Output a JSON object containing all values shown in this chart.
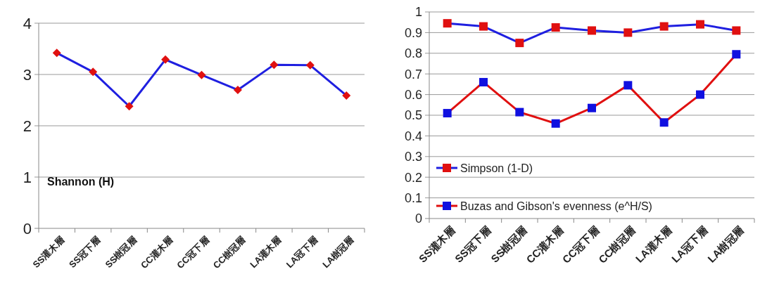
{
  "chart_data": [
    {
      "type": "line",
      "categories": [
        "SS灌木層",
        "SS冠下層",
        "SS樹冠層",
        "CC灌木層",
        "CC冠下層",
        "CC樹冠層",
        "LA灌木層",
        "LA冠下層",
        "LA樹冠層"
      ],
      "series": [
        {
          "color": "#1f1fe0",
          "colors": [
            "#e01010",
            "#e01010",
            "#e01010",
            "#e01010",
            "#e01010",
            "#e01010",
            "#e01010",
            "#e01010",
            "#e01010"
          ],
          "values": [
            3.42,
            3.05,
            2.38,
            3.29,
            2.99,
            2.7,
            3.19,
            3.18,
            2.59
          ]
        }
      ],
      "ylim": [
        0,
        4
      ],
      "yticks": [
        0,
        1,
        2,
        3,
        4
      ],
      "grid": "y",
      "marker": "diamond",
      "legend": false,
      "annotations": [
        "Shannon (H)"
      ]
    },
    {
      "type": "line",
      "categories": [
        "SS灌木層",
        "SS冠下層",
        "SS樹冠層",
        "CC灌木層",
        "CC冠下層",
        "CC樹冠層",
        "LA灌木層",
        "LA冠下層",
        "LA樹冠層"
      ],
      "series": [
        {
          "name": "Simpson (1-D)",
          "color": "#1f1fe0",
          "marker": "square",
          "colors": [
            "#e01010",
            "#e01010",
            "#e01010",
            "#e01010",
            "#e01010",
            "#e01010",
            "#e01010",
            "#e01010",
            "#e01010"
          ],
          "values": [
            0.945,
            0.93,
            0.85,
            0.925,
            0.91,
            0.9,
            0.93,
            0.94,
            0.91
          ]
        },
        {
          "name": "Buzas and Gibson's evenness (e^H/S)",
          "color": "#e01010",
          "marker": "square",
          "colors": [
            "#1010e0",
            "#1010e0",
            "#1010e0",
            "#1010e0",
            "#1010e0",
            "#1010e0",
            "#1010e0",
            "#1010e0",
            "#1010e0"
          ],
          "values": [
            0.51,
            0.66,
            0.515,
            0.46,
            0.535,
            0.645,
            0.465,
            0.6,
            0.795
          ]
        }
      ],
      "ylim": [
        0,
        1
      ],
      "yticks": [
        0,
        0.1,
        0.2,
        0.3,
        0.4,
        0.5,
        0.6,
        0.7,
        0.8,
        0.9,
        1
      ],
      "grid": "y",
      "legend": "bottom left"
    }
  ]
}
